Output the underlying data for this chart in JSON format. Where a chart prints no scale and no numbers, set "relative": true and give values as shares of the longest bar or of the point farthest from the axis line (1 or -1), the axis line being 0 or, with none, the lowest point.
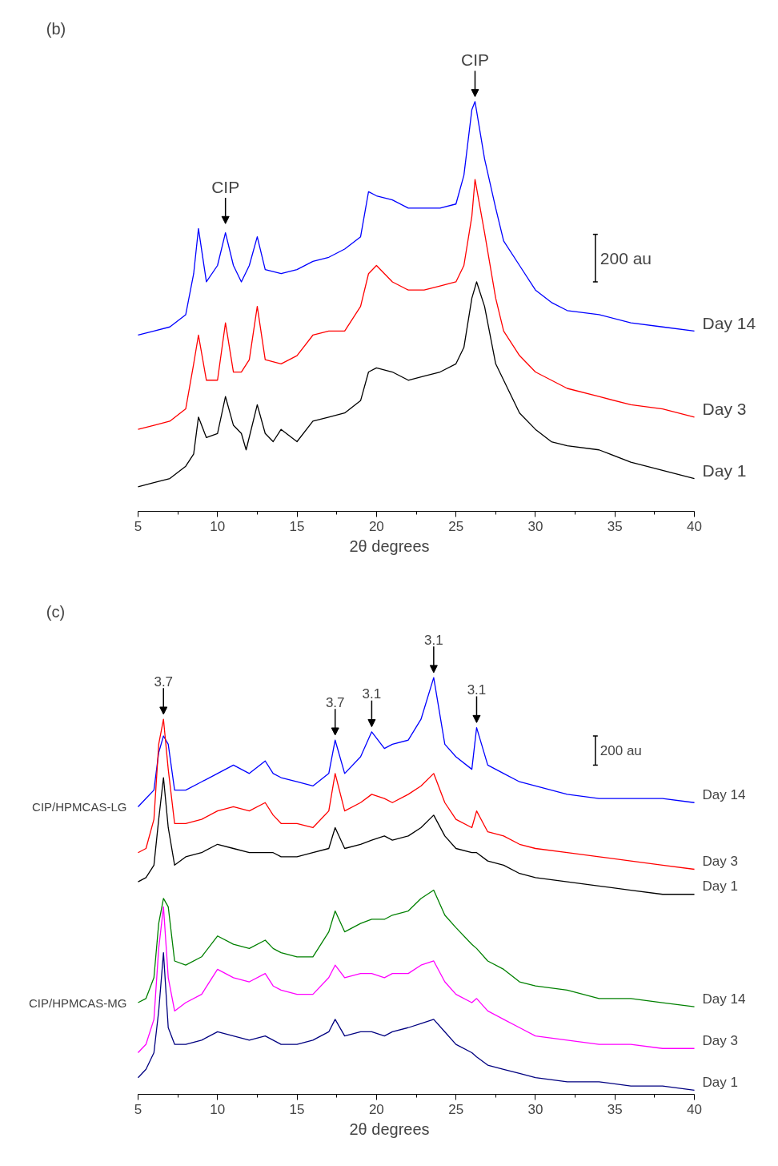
{
  "chart_data": [
    {
      "type": "line",
      "relative": true,
      "xlim": [
        5,
        40
      ],
      "xticks": [
        5,
        10,
        15,
        20,
        25,
        30,
        35,
        40
      ],
      "xlabel": "2θ degrees",
      "grid": false,
      "legend": false,
      "series": [
        {
          "name": "Day 1",
          "color": "#000000",
          "x": [
            5,
            6,
            7,
            8,
            8.5,
            8.8,
            9.3,
            10,
            10.5,
            11,
            11.5,
            11.8,
            12.5,
            13,
            13.5,
            14,
            15,
            16,
            17,
            18,
            19,
            19.5,
            20,
            21,
            22,
            23,
            24,
            25,
            25.5,
            26,
            26.3,
            26.8,
            27.5,
            28,
            29,
            30,
            31,
            32,
            34,
            36,
            38,
            40
          ],
          "values": [
            0.06,
            0.07,
            0.08,
            0.11,
            0.14,
            0.23,
            0.18,
            0.19,
            0.28,
            0.21,
            0.19,
            0.15,
            0.26,
            0.19,
            0.17,
            0.2,
            0.17,
            0.22,
            0.23,
            0.24,
            0.27,
            0.34,
            0.35,
            0.34,
            0.32,
            0.33,
            0.34,
            0.36,
            0.4,
            0.52,
            0.56,
            0.5,
            0.36,
            0.32,
            0.24,
            0.2,
            0.17,
            0.16,
            0.15,
            0.12,
            0.1,
            0.08
          ]
        },
        {
          "name": "Day 3",
          "color": "#ff0000",
          "x": [
            5,
            6,
            7,
            8,
            8.5,
            8.8,
            9.3,
            10,
            10.5,
            11,
            11.5,
            12,
            12.5,
            13,
            14,
            15,
            16,
            17,
            18,
            19,
            19.5,
            20,
            21,
            22,
            23,
            24,
            25,
            25.5,
            26,
            26.2,
            26.8,
            27.5,
            28,
            29,
            30,
            31,
            32,
            34,
            36,
            38,
            40
          ],
          "values": [
            0.2,
            0.21,
            0.22,
            0.25,
            0.36,
            0.43,
            0.32,
            0.32,
            0.46,
            0.34,
            0.34,
            0.37,
            0.5,
            0.37,
            0.36,
            0.38,
            0.43,
            0.44,
            0.44,
            0.5,
            0.58,
            0.6,
            0.56,
            0.54,
            0.54,
            0.55,
            0.56,
            0.6,
            0.72,
            0.81,
            0.68,
            0.52,
            0.44,
            0.38,
            0.34,
            0.32,
            0.3,
            0.28,
            0.26,
            0.25,
            0.23
          ]
        },
        {
          "name": "Day 14",
          "color": "#0000ff",
          "x": [
            5,
            6,
            7,
            8,
            8.5,
            8.8,
            9.3,
            10,
            10.5,
            11,
            11.5,
            12,
            12.5,
            13,
            14,
            15,
            16,
            17,
            18,
            19,
            19.5,
            20,
            21,
            22,
            23,
            24,
            25,
            25.5,
            26,
            26.2,
            26.8,
            27.5,
            28,
            29,
            30,
            31,
            32,
            34,
            36,
            38,
            40
          ],
          "values": [
            0.43,
            0.44,
            0.45,
            0.48,
            0.58,
            0.69,
            0.56,
            0.6,
            0.68,
            0.6,
            0.56,
            0.6,
            0.67,
            0.59,
            0.58,
            0.59,
            0.61,
            0.62,
            0.64,
            0.67,
            0.78,
            0.77,
            0.76,
            0.74,
            0.74,
            0.74,
            0.75,
            0.82,
            0.98,
            1.0,
            0.86,
            0.74,
            0.66,
            0.6,
            0.54,
            0.51,
            0.49,
            0.48,
            0.46,
            0.45,
            0.44
          ]
        }
      ],
      "annotations": [
        "(b)",
        "200 au",
        {
          "text": "CIP",
          "x": 10.5,
          "y": 0.69
        },
        {
          "text": "CIP",
          "x": 26.2,
          "y": 1.0
        }
      ]
    },
    {
      "type": "line",
      "relative": true,
      "xlim": [
        5,
        40
      ],
      "xticks": [
        5,
        10,
        15,
        20,
        25,
        30,
        35,
        40
      ],
      "xlabel": "2θ degrees",
      "grid": false,
      "legend": false,
      "x": [
        5,
        5.5,
        6,
        6.3,
        6.6,
        6.9,
        7.3,
        8,
        9,
        10,
        11,
        12,
        13,
        13.5,
        14,
        15,
        16,
        17,
        17.4,
        18,
        19,
        19.7,
        20.5,
        21,
        22,
        22.8,
        23.6,
        24.3,
        25,
        26,
        26.3,
        27,
        28,
        29,
        30,
        32,
        34,
        36,
        38,
        40
      ],
      "series": [
        {
          "name": "Day 14",
          "color": "#0000ff",
          "values": [
            0.69,
            0.71,
            0.73,
            0.82,
            0.86,
            0.84,
            0.73,
            0.73,
            0.75,
            0.77,
            0.79,
            0.77,
            0.8,
            0.77,
            0.76,
            0.75,
            0.74,
            0.77,
            0.85,
            0.77,
            0.81,
            0.87,
            0.83,
            0.84,
            0.85,
            0.9,
            1.0,
            0.84,
            0.81,
            0.78,
            0.88,
            0.79,
            0.77,
            0.75,
            0.74,
            0.72,
            0.71,
            0.71,
            0.71,
            0.7
          ]
        },
        {
          "name": "Day 3",
          "color": "#ff0000",
          "values": [
            0.58,
            0.59,
            0.66,
            0.84,
            0.9,
            0.78,
            0.65,
            0.65,
            0.66,
            0.68,
            0.69,
            0.68,
            0.7,
            0.67,
            0.65,
            0.65,
            0.64,
            0.68,
            0.77,
            0.68,
            0.7,
            0.72,
            0.71,
            0.7,
            0.72,
            0.74,
            0.77,
            0.7,
            0.66,
            0.64,
            0.68,
            0.63,
            0.62,
            0.6,
            0.59,
            0.58,
            0.57,
            0.56,
            0.55,
            0.54
          ]
        },
        {
          "name": "Day 1",
          "color": "#000000",
          "values": [
            0.51,
            0.52,
            0.55,
            0.66,
            0.76,
            0.64,
            0.55,
            0.57,
            0.58,
            0.6,
            0.59,
            0.58,
            0.58,
            0.58,
            0.57,
            0.57,
            0.58,
            0.59,
            0.64,
            0.59,
            0.6,
            0.61,
            0.62,
            0.61,
            0.62,
            0.64,
            0.67,
            0.62,
            0.59,
            0.58,
            0.58,
            0.56,
            0.55,
            0.53,
            0.52,
            0.51,
            0.5,
            0.49,
            0.48,
            0.48
          ]
        },
        {
          "name": "Day 14",
          "color": "#008000",
          "values": [
            0.22,
            0.23,
            0.28,
            0.41,
            0.47,
            0.45,
            0.32,
            0.31,
            0.33,
            0.38,
            0.36,
            0.35,
            0.37,
            0.35,
            0.34,
            0.33,
            0.33,
            0.39,
            0.44,
            0.39,
            0.41,
            0.42,
            0.42,
            0.43,
            0.44,
            0.47,
            0.49,
            0.43,
            0.4,
            0.36,
            0.35,
            0.32,
            0.3,
            0.27,
            0.26,
            0.25,
            0.23,
            0.23,
            0.22,
            0.21
          ]
        },
        {
          "name": "Day 3",
          "color": "#ff00ff",
          "values": [
            0.1,
            0.12,
            0.18,
            0.35,
            0.45,
            0.28,
            0.2,
            0.22,
            0.24,
            0.3,
            0.28,
            0.27,
            0.29,
            0.26,
            0.25,
            0.24,
            0.24,
            0.28,
            0.31,
            0.28,
            0.29,
            0.29,
            0.28,
            0.29,
            0.29,
            0.31,
            0.32,
            0.27,
            0.24,
            0.22,
            0.23,
            0.2,
            0.18,
            0.16,
            0.14,
            0.13,
            0.12,
            0.12,
            0.11,
            0.11
          ]
        },
        {
          "name": "Day 1",
          "color": "#000080",
          "values": [
            0.04,
            0.06,
            0.1,
            0.2,
            0.34,
            0.16,
            0.12,
            0.12,
            0.13,
            0.15,
            0.14,
            0.13,
            0.14,
            0.13,
            0.12,
            0.12,
            0.13,
            0.15,
            0.18,
            0.14,
            0.15,
            0.15,
            0.14,
            0.15,
            0.16,
            0.17,
            0.18,
            0.15,
            0.12,
            0.1,
            0.09,
            0.07,
            0.06,
            0.05,
            0.04,
            0.03,
            0.03,
            0.02,
            0.02,
            0.01
          ]
        }
      ],
      "annotations": [
        "(c)",
        "200 au",
        "CIP/HPMCAS-LG",
        "CIP/HPMCAS-MG",
        {
          "text": "3.7",
          "x": 6.6,
          "y": 0.9
        },
        {
          "text": "3.7",
          "x": 17.4,
          "y": 0.85
        },
        {
          "text": "3.1",
          "x": 19.7,
          "y": 0.87
        },
        {
          "text": "3.1",
          "x": 23.6,
          "y": 1.0
        },
        {
          "text": "3.1",
          "x": 26.3,
          "y": 0.88
        }
      ]
    }
  ]
}
